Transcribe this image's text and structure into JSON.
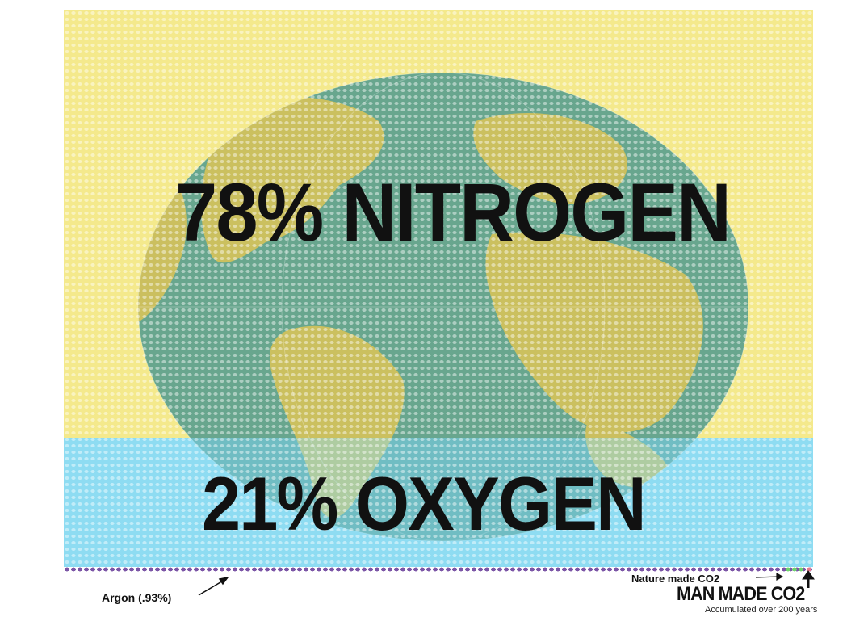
{
  "top_caption": "",
  "labels": {
    "nitrogen": "78% NITROGEN",
    "oxygen": "21% OXYGEN",
    "argon": "Argon (.93%)",
    "nature_co2": "Nature made CO2",
    "man_co2": "MAN MADE CO2",
    "accumulated": "Accumulated over 200 years"
  },
  "colors": {
    "nitrogen": "#f4e98c",
    "oxygen": "#8fdcf2",
    "argon": "#7b55a6",
    "nature_co2": "#6fd36c",
    "man_co2": "#e97b8b",
    "globe_ocean": "#3f8a8a",
    "globe_land": "#d8c25a"
  },
  "icons": {
    "globe": "earth-globe-icon",
    "argon_pointer": "arrow-pointer-icon",
    "co2_pointer": "arrow-up-icon"
  }
}
